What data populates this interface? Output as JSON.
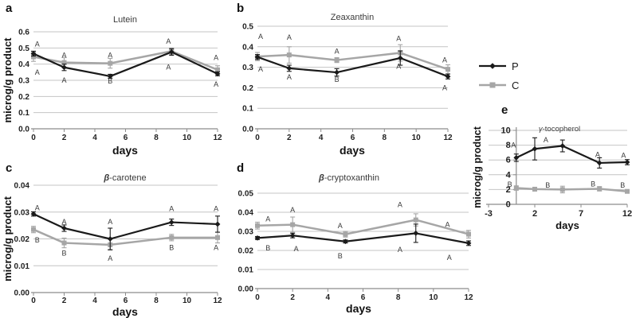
{
  "figure": {
    "background": "#ffffff",
    "colors": {
      "series_p": "#1a1a1a",
      "series_c": "#a6a6a6",
      "grid": "#c4c4c4",
      "axis": "#8c8c8c",
      "text": "#3a3a3a",
      "tick_text": "#1f1f1f"
    },
    "legend": {
      "items": [
        {
          "label": "P",
          "marker": "diamond",
          "color_key": "series_p"
        },
        {
          "label": "C",
          "marker": "square",
          "color_key": "series_c"
        }
      ]
    }
  },
  "chart_data": [
    {
      "id": "a",
      "type": "line",
      "panel_label": "a",
      "title": "Lutein",
      "xlabel": "days",
      "ylabel": "microg/g product",
      "xlim": [
        0,
        12
      ],
      "ylim": [
        0,
        0.6
      ],
      "xticks": [
        0,
        2,
        4,
        6,
        8,
        10,
        12
      ],
      "yticks": [
        0,
        0.1,
        0.2,
        0.3,
        0.4,
        0.5,
        0.6
      ],
      "ytick_decimals": 1,
      "grid": true,
      "x": [
        0,
        2,
        5,
        9,
        12
      ],
      "series": [
        {
          "name": "P",
          "marker": "diamond",
          "color_key": "series_p",
          "values": [
            0.465,
            0.38,
            0.325,
            0.475,
            0.34
          ],
          "errors": [
            0.015,
            0.02,
            0.012,
            0.02,
            0.012
          ]
        },
        {
          "name": "C",
          "marker": "square",
          "color_key": "series_c",
          "values": [
            0.445,
            0.41,
            0.405,
            0.48,
            0.365
          ],
          "errors": [
            0.028,
            0.03,
            0.03,
            0.02,
            0.025
          ]
        }
      ],
      "annotations": [
        {
          "x": 0.25,
          "y": 0.525,
          "text": "A"
        },
        {
          "x": 2,
          "y": 0.455,
          "text": "A"
        },
        {
          "x": 5,
          "y": 0.455,
          "text": "A"
        },
        {
          "x": 8.8,
          "y": 0.54,
          "text": "A"
        },
        {
          "x": 11.9,
          "y": 0.44,
          "text": "A"
        },
        {
          "x": 0.25,
          "y": 0.35,
          "text": "A"
        },
        {
          "x": 2,
          "y": 0.3,
          "text": "A"
        },
        {
          "x": 5,
          "y": 0.295,
          "text": "B"
        },
        {
          "x": 8.8,
          "y": 0.38,
          "text": "A"
        },
        {
          "x": 11.9,
          "y": 0.275,
          "text": "A"
        }
      ]
    },
    {
      "id": "b",
      "type": "line",
      "panel_label": "b",
      "title": "Zeaxanthin",
      "xlabel": "days",
      "ylabel": "",
      "xlim": [
        0,
        12
      ],
      "ylim": [
        0,
        0.5
      ],
      "xticks": [
        0,
        2,
        4,
        6,
        8,
        10,
        12
      ],
      "yticks": [
        0,
        0.1,
        0.2,
        0.3,
        0.4,
        0.5
      ],
      "ytick_decimals": 1,
      "grid": true,
      "x": [
        0,
        2,
        5,
        9,
        12
      ],
      "series": [
        {
          "name": "P",
          "marker": "diamond",
          "color_key": "series_p",
          "values": [
            0.35,
            0.295,
            0.275,
            0.345,
            0.255
          ],
          "errors": [
            0.012,
            0.015,
            0.018,
            0.035,
            0.012
          ]
        },
        {
          "name": "C",
          "marker": "square",
          "color_key": "series_c",
          "values": [
            0.352,
            0.36,
            0.335,
            0.37,
            0.29
          ],
          "errors": [
            0.02,
            0.04,
            0.012,
            0.04,
            0.022
          ]
        }
      ],
      "annotations": [
        {
          "x": 0.2,
          "y": 0.45,
          "text": "A"
        },
        {
          "x": 2,
          "y": 0.445,
          "text": "A"
        },
        {
          "x": 5,
          "y": 0.378,
          "text": "A"
        },
        {
          "x": 8.9,
          "y": 0.44,
          "text": "A"
        },
        {
          "x": 11.8,
          "y": 0.335,
          "text": "A"
        },
        {
          "x": 0.2,
          "y": 0.29,
          "text": "A"
        },
        {
          "x": 2,
          "y": 0.252,
          "text": "A"
        },
        {
          "x": 5,
          "y": 0.24,
          "text": "B"
        },
        {
          "x": 8.9,
          "y": 0.305,
          "text": "A"
        },
        {
          "x": 11.8,
          "y": 0.2,
          "text": "A"
        }
      ]
    },
    {
      "id": "c",
      "type": "line",
      "panel_label": "c",
      "title": "β-carotene",
      "xlabel": "days",
      "ylabel": "microg/g product",
      "xlim": [
        0,
        12
      ],
      "ylim": [
        0,
        0.04
      ],
      "xticks": [
        0,
        2,
        4,
        6,
        8,
        10,
        12
      ],
      "yticks": [
        0,
        0.01,
        0.02,
        0.03,
        0.04
      ],
      "ytick_decimals": 2,
      "grid": true,
      "x": [
        0,
        2,
        5,
        9,
        12
      ],
      "series": [
        {
          "name": "P",
          "marker": "diamond",
          "color_key": "series_p",
          "values": [
            0.0293,
            0.024,
            0.02,
            0.0262,
            0.0255
          ],
          "errors": [
            0.0008,
            0.0012,
            0.004,
            0.0012,
            0.003
          ]
        },
        {
          "name": "C",
          "marker": "square",
          "color_key": "series_c",
          "values": [
            0.0235,
            0.0185,
            0.0178,
            0.0205,
            0.0205
          ],
          "errors": [
            0.0012,
            0.0018,
            0.002,
            0.0012,
            0.002
          ]
        }
      ],
      "annotations": [
        {
          "x": 0.25,
          "y": 0.0315,
          "text": "A"
        },
        {
          "x": 2,
          "y": 0.0263,
          "text": "A"
        },
        {
          "x": 5,
          "y": 0.0263,
          "text": "A"
        },
        {
          "x": 9,
          "y": 0.0313,
          "text": "A"
        },
        {
          "x": 11.9,
          "y": 0.0313,
          "text": "A"
        },
        {
          "x": 0.25,
          "y": 0.0196,
          "text": "B"
        },
        {
          "x": 2,
          "y": 0.0147,
          "text": "B"
        },
        {
          "x": 5,
          "y": 0.0127,
          "text": "A"
        },
        {
          "x": 9,
          "y": 0.0167,
          "text": "B"
        },
        {
          "x": 11.9,
          "y": 0.0167,
          "text": "A"
        }
      ]
    },
    {
      "id": "d",
      "type": "line",
      "panel_label": "d",
      "title": "β-cryptoxanthin",
      "xlabel": "days",
      "ylabel": "",
      "xlim": [
        0,
        12
      ],
      "ylim": [
        0,
        0.05
      ],
      "xticks": [
        0,
        2,
        4,
        6,
        8,
        10,
        12
      ],
      "yticks": [
        0,
        0.01,
        0.02,
        0.03,
        0.04,
        0.05
      ],
      "ytick_decimals": 2,
      "grid": true,
      "x": [
        0,
        2,
        5,
        9,
        12
      ],
      "series": [
        {
          "name": "P",
          "marker": "diamond",
          "color_key": "series_p",
          "values": [
            0.0265,
            0.0278,
            0.0247,
            0.029,
            0.0238
          ],
          "errors": [
            0.0008,
            0.0012,
            0.0008,
            0.0048,
            0.0012
          ]
        },
        {
          "name": "C",
          "marker": "square",
          "color_key": "series_c",
          "values": [
            0.033,
            0.0335,
            0.0285,
            0.036,
            0.0285
          ],
          "errors": [
            0.0018,
            0.004,
            0.0015,
            0.0032,
            0.002
          ]
        }
      ],
      "annotations": [
        {
          "x": 0.6,
          "y": 0.0365,
          "text": "A"
        },
        {
          "x": 2,
          "y": 0.0413,
          "text": "A"
        },
        {
          "x": 4.7,
          "y": 0.033,
          "text": "A"
        },
        {
          "x": 8.1,
          "y": 0.044,
          "text": "A"
        },
        {
          "x": 10.8,
          "y": 0.0335,
          "text": "A"
        },
        {
          "x": 0.6,
          "y": 0.0213,
          "text": "B"
        },
        {
          "x": 2.2,
          "y": 0.0208,
          "text": "A"
        },
        {
          "x": 4.7,
          "y": 0.017,
          "text": "B"
        },
        {
          "x": 8.1,
          "y": 0.0204,
          "text": "A"
        },
        {
          "x": 10.9,
          "y": 0.0163,
          "text": "A"
        }
      ]
    },
    {
      "id": "e",
      "type": "line",
      "panel_label": "e",
      "title": "γ-tocopherol",
      "xlabel": "days",
      "ylabel": "microg/g product",
      "xlim": [
        -3,
        12
      ],
      "ylim": [
        0,
        10
      ],
      "xticks": [
        -3,
        2,
        7,
        12
      ],
      "yticks": [
        0,
        2,
        4,
        6,
        8,
        10
      ],
      "ytick_decimals": 0,
      "grid": false,
      "x": [
        0,
        2,
        5,
        9,
        12
      ],
      "series": [
        {
          "name": "P",
          "marker": "diamond",
          "color_key": "series_p",
          "values": [
            6.3,
            7.5,
            7.9,
            5.6,
            5.7
          ],
          "errors": [
            0.5,
            1.5,
            0.8,
            0.7,
            0.35
          ]
        },
        {
          "name": "C",
          "marker": "square",
          "color_key": "series_c",
          "values": [
            2.2,
            2.05,
            2.0,
            2.1,
            1.75
          ],
          "errors": [
            0.3,
            0.25,
            0.45,
            0.3,
            0.15
          ]
        }
      ],
      "annotations": [
        {
          "x": -0.3,
          "y": 8.0,
          "text": "A"
        },
        {
          "x": 3.2,
          "y": 8.7,
          "text": "A"
        },
        {
          "x": 8.8,
          "y": 6.7,
          "text": "A"
        },
        {
          "x": 11.6,
          "y": 6.6,
          "text": "A"
        },
        {
          "x": -0.7,
          "y": 2.7,
          "text": "B"
        },
        {
          "x": 3.4,
          "y": 2.6,
          "text": "B"
        },
        {
          "x": 8.3,
          "y": 2.75,
          "text": "B"
        },
        {
          "x": 11.5,
          "y": 2.6,
          "text": "B"
        }
      ]
    }
  ]
}
